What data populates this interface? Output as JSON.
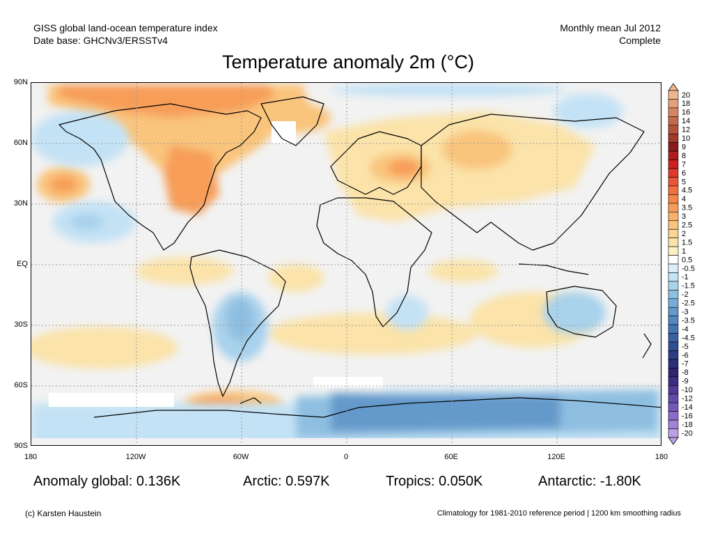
{
  "header": {
    "source_line1": "GISS global land-ocean temperature index",
    "source_line2": "Date base: GHCNv3/ERSSTv4",
    "period_line1": "Monthly mean Jul 2012",
    "period_line2": "Complete"
  },
  "title": "Temperature anomaly 2m (°C)",
  "axes": {
    "lat_labels": [
      "90N",
      "60N",
      "30N",
      "EQ",
      "30S",
      "60S",
      "90S"
    ],
    "lon_labels": [
      "180",
      "120W",
      "60W",
      "0",
      "60E",
      "120E",
      "180"
    ]
  },
  "colorbar": {
    "labels": [
      "20",
      "18",
      "16",
      "14",
      "12",
      "10",
      "9",
      "8",
      "7",
      "6",
      "5",
      "4.5",
      "4",
      "3.5",
      "3",
      "2.5",
      "2",
      "1.5",
      "1",
      "0.5",
      "-0.5",
      "-1",
      "-1.5",
      "-2",
      "-2.5",
      "-3",
      "-3.5",
      "-4",
      "-4.5",
      "-5",
      "-6",
      "-7",
      "-8",
      "-9",
      "-10",
      "-12",
      "-14",
      "-16",
      "-18",
      "-20"
    ],
    "colors": [
      "#efb78f",
      "#e6a07a",
      "#d68563",
      "#c56a4d",
      "#b4523a",
      "#a03928",
      "#8b1a1a",
      "#b01c1c",
      "#cc2222",
      "#e0392c",
      "#ec5638",
      "#f2703e",
      "#f5874a",
      "#f79d58",
      "#f8b26a",
      "#f9c47c",
      "#fad491",
      "#fbe3a9",
      "#fcefc6",
      "#ffffff",
      "#dbeefa",
      "#c4e2f5",
      "#a9d2ec",
      "#8ebfe1",
      "#78acd6",
      "#6399cb",
      "#5287bf",
      "#4574b2",
      "#3a61a4",
      "#314f95",
      "#2a3d86",
      "#2a2f77",
      "#2e2470",
      "#3d2c84",
      "#503a98",
      "#6349aa",
      "#7658bc",
      "#8a6bcb",
      "#a184d8",
      "#bba1e4"
    ]
  },
  "stats": {
    "global": "Anomaly global: 0.136K",
    "arctic": "Arctic: 0.597K",
    "tropics": "Tropics: 0.050K",
    "antarctic": "Antarctic: -1.80K"
  },
  "footer": {
    "credit": "(c) Karsten Haustein",
    "note": "Climatology for 1981-2010 reference period | 1200 km smoothing radius"
  },
  "map_colors": {
    "ocean_neutral": "#f2f2f2",
    "warm_light": "#fbe3a9",
    "warm_mid": "#f9c47c",
    "warm_strong": "#f79d58",
    "cool_light": "#c4e2f5",
    "cool_mid": "#8ebfe1",
    "cool_strong": "#6399cb",
    "missing": "#ffffff",
    "coastline": "#000000"
  }
}
